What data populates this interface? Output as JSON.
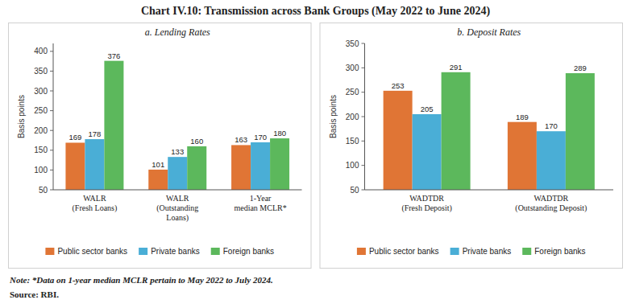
{
  "title": "Chart IV.10: Transmission across Bank Groups (May 2022 to June 2024)",
  "annotations": [
    "Note: *Data on 1-year median MCLR pertain to May 2022 to July 2024.",
    "Source: RBI."
  ],
  "chart_data": [
    {
      "type": "bar",
      "title": "a. Lending Rates",
      "ylabel": "Basis points",
      "categories": [
        "WALR\n(Fresh Loans)",
        "WALR\n(Outstanding\nLoans)",
        "1-Year\nmedian MCLR*"
      ],
      "series": [
        {
          "name": "Public sector banks",
          "color": "#E07535",
          "values": [
            169,
            101,
            163
          ]
        },
        {
          "name": "Private banks",
          "color": "#4AAED6",
          "values": [
            178,
            133,
            170
          ]
        },
        {
          "name": "Foreign banks",
          "color": "#5CB85C",
          "values": [
            376,
            160,
            180
          ]
        }
      ],
      "ylim": [
        50,
        420
      ],
      "yticks": [
        50,
        100,
        150,
        200,
        250,
        300,
        350,
        400
      ],
      "data_labels": true,
      "legend": "bottom",
      "grid": false
    },
    {
      "type": "bar",
      "title": "b. Deposit Rates",
      "ylabel": "Basis points",
      "categories": [
        "WADTDR\n(Fresh Deposit)",
        "WADTDR\n(Outstanding Deposit)"
      ],
      "series": [
        {
          "name": "Public sector banks",
          "color": "#E07535",
          "values": [
            253,
            189
          ]
        },
        {
          "name": "Private banks",
          "color": "#4AAED6",
          "values": [
            205,
            170
          ]
        },
        {
          "name": "Foreign banks",
          "color": "#5CB85C",
          "values": [
            291,
            289
          ]
        }
      ],
      "ylim": [
        50,
        350
      ],
      "yticks": [
        50,
        100,
        150,
        200,
        250,
        300,
        350
      ],
      "data_labels": true,
      "legend": "bottom",
      "grid": false
    }
  ]
}
